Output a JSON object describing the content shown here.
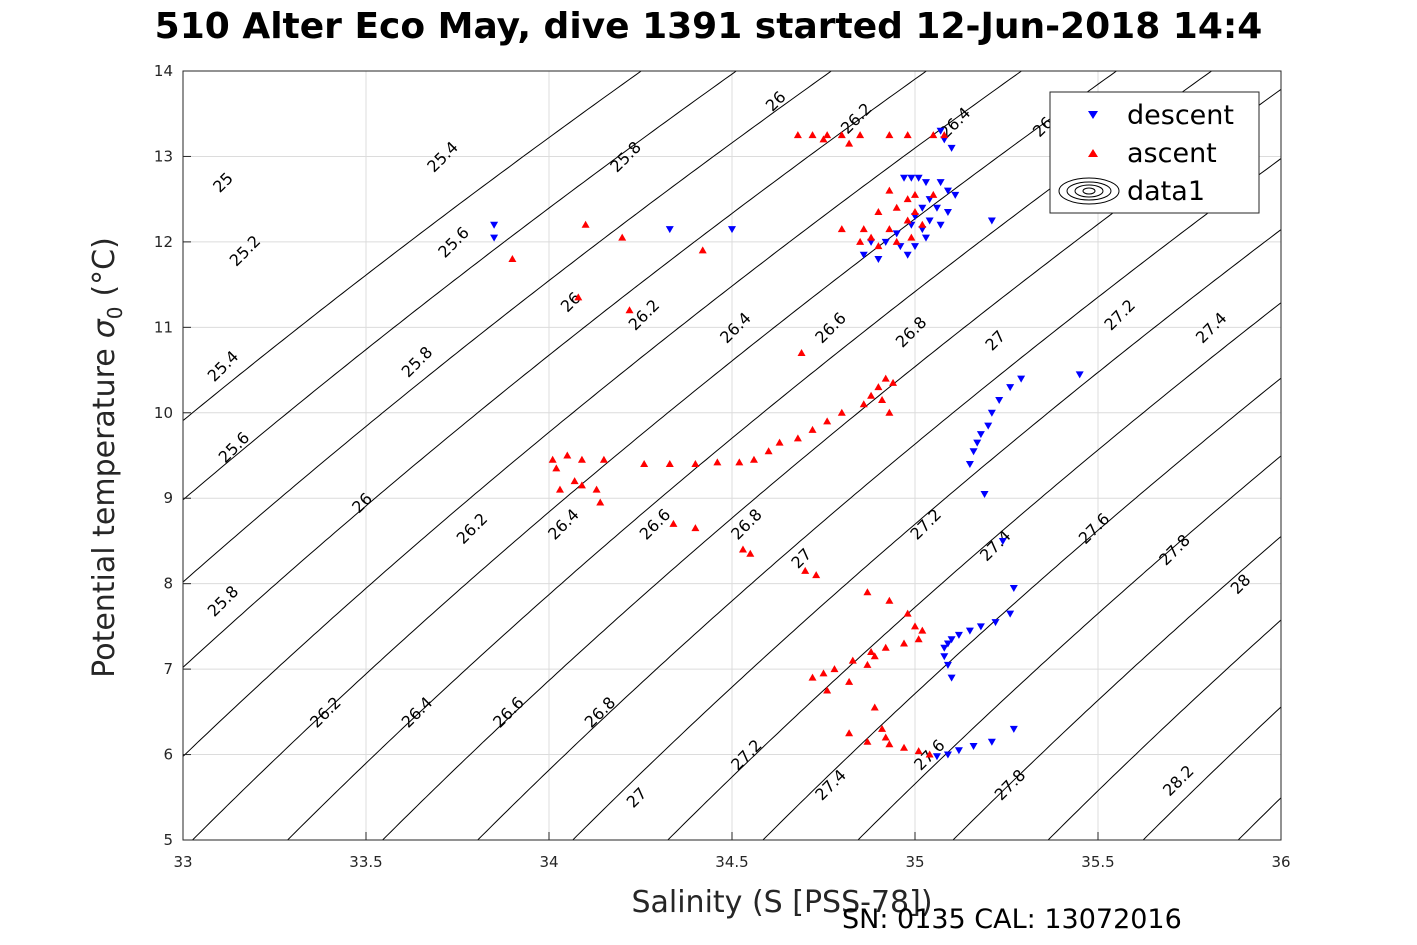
{
  "chart_data": {
    "type": "scatter",
    "title": "510 Alter Eco May, dive 1391 started 12-Jun-2018 14:4",
    "xlabel": "Salinity (S [PSS-78])",
    "ylabel": "Potential temperature",
    "ylabel_symbol": "σ",
    "ylabel_subscript": "0",
    "ylabel_unit": "(°C)",
    "xlim": [
      33,
      36
    ],
    "ylim": [
      5,
      14
    ],
    "xticks": [
      33,
      33.5,
      34,
      34.5,
      35,
      35.5,
      36
    ],
    "xtick_labels": [
      "33",
      "33.5",
      "34",
      "34.5",
      "35",
      "35.5",
      "36"
    ],
    "yticks": [
      5,
      6,
      7,
      8,
      9,
      10,
      11,
      12,
      13,
      14
    ],
    "ytick_labels": [
      "5",
      "6",
      "7",
      "8",
      "9",
      "10",
      "11",
      "12",
      "13",
      "14"
    ],
    "grid": true,
    "legend_position": "top-right",
    "legend": [
      "descent",
      "ascent",
      "data1"
    ],
    "footer": "SN: 0135  CAL: 13072016",
    "colors": {
      "descent": "#0000ff",
      "ascent": "#ff0000",
      "contour": "#000000",
      "grid": "#dcdcdc"
    },
    "contours": {
      "levels": [
        25,
        25.2,
        25.4,
        25.6,
        25.8,
        26,
        26.2,
        26.4,
        26.6,
        26.8,
        27,
        27.2,
        27.4,
        27.6,
        27.8,
        28,
        28.2
      ],
      "labels": [
        {
          "text": "25",
          "S": 33.12,
          "T": 12.65
        },
        {
          "text": "25.2",
          "S": 33.18,
          "T": 11.85
        },
        {
          "text": "25.4",
          "S": 33.12,
          "T": 10.5
        },
        {
          "text": "25.6",
          "S": 33.15,
          "T": 9.55
        },
        {
          "text": "25.8",
          "S": 33.12,
          "T": 7.75
        },
        {
          "text": "25.4",
          "S": 33.72,
          "T": 12.95
        },
        {
          "text": "25.6",
          "S": 33.75,
          "T": 11.95
        },
        {
          "text": "25.8",
          "S": 33.65,
          "T": 10.55
        },
        {
          "text": "26",
          "S": 33.5,
          "T": 8.9
        },
        {
          "text": "26.2",
          "S": 33.4,
          "T": 6.45
        },
        {
          "text": "26.4",
          "S": 33.65,
          "T": 6.45
        },
        {
          "text": "26.6",
          "S": 33.9,
          "T": 6.45
        },
        {
          "text": "26.8",
          "S": 34.15,
          "T": 6.45
        },
        {
          "text": "26.2",
          "S": 33.8,
          "T": 8.6
        },
        {
          "text": "26.4",
          "S": 34.05,
          "T": 8.65
        },
        {
          "text": "26.6",
          "S": 34.3,
          "T": 8.65
        },
        {
          "text": "26.8",
          "S": 34.55,
          "T": 8.65
        },
        {
          "text": "27",
          "S": 34.25,
          "T": 5.45
        },
        {
          "text": "27.2",
          "S": 34.55,
          "T": 5.95
        },
        {
          "text": "27.4",
          "S": 34.78,
          "T": 5.6
        },
        {
          "text": "27",
          "S": 34.7,
          "T": 8.25
        },
        {
          "text": "25.8",
          "S": 34.22,
          "T": 12.95
        },
        {
          "text": "26",
          "S": 34.07,
          "T": 11.25
        },
        {
          "text": "26.2",
          "S": 34.27,
          "T": 11.1
        },
        {
          "text": "26.4",
          "S": 34.52,
          "T": 10.95
        },
        {
          "text": "26.6",
          "S": 34.78,
          "T": 10.95
        },
        {
          "text": "26.8",
          "S": 35.0,
          "T": 10.9
        },
        {
          "text": "27",
          "S": 35.23,
          "T": 10.8
        },
        {
          "text": "27.2",
          "S": 35.57,
          "T": 11.1
        },
        {
          "text": "27.4",
          "S": 35.82,
          "T": 10.95
        },
        {
          "text": "26",
          "S": 34.63,
          "T": 13.6
        },
        {
          "text": "26.2",
          "S": 34.85,
          "T": 13.4
        },
        {
          "text": "26.4",
          "S": 35.12,
          "T": 13.35
        },
        {
          "text": "26",
          "S": 35.36,
          "T": 13.3
        },
        {
          "text": "27.2",
          "S": 35.04,
          "T": 8.65
        },
        {
          "text": "27.4",
          "S": 35.23,
          "T": 8.4
        },
        {
          "text": "27.6",
          "S": 35.5,
          "T": 8.6
        },
        {
          "text": "27.8",
          "S": 35.72,
          "T": 8.35
        },
        {
          "text": "28",
          "S": 35.9,
          "T": 7.95
        },
        {
          "text": "27.6",
          "S": 35.05,
          "T": 5.95
        },
        {
          "text": "27.8",
          "S": 35.27,
          "T": 5.6
        },
        {
          "text": "28.2",
          "S": 35.73,
          "T": 5.65
        }
      ]
    },
    "series": [
      {
        "name": "descent",
        "marker": "triangle-down",
        "points": [
          [
            33.85,
            12.2
          ],
          [
            33.85,
            12.05
          ],
          [
            34.33,
            12.15
          ],
          [
            34.5,
            12.15
          ],
          [
            34.97,
            12.75
          ],
          [
            34.99,
            12.75
          ],
          [
            35.01,
            12.75
          ],
          [
            35.03,
            12.7
          ],
          [
            35.07,
            12.7
          ],
          [
            35.09,
            12.6
          ],
          [
            35.11,
            12.55
          ],
          [
            35.04,
            12.5
          ],
          [
            35.02,
            12.4
          ],
          [
            35.06,
            12.4
          ],
          [
            35.09,
            12.35
          ],
          [
            35.0,
            12.3
          ],
          [
            35.04,
            12.25
          ],
          [
            35.07,
            12.2
          ],
          [
            35.02,
            12.15
          ],
          [
            34.99,
            12.2
          ],
          [
            34.95,
            12.1
          ],
          [
            34.92,
            12.0
          ],
          [
            34.96,
            11.95
          ],
          [
            35.0,
            11.95
          ],
          [
            34.98,
            11.85
          ],
          [
            34.9,
            11.8
          ],
          [
            34.86,
            11.85
          ],
          [
            34.88,
            12.0
          ],
          [
            35.03,
            12.05
          ],
          [
            35.21,
            12.25
          ],
          [
            35.08,
            13.2
          ],
          [
            35.1,
            13.1
          ],
          [
            35.07,
            13.3
          ],
          [
            35.45,
            10.45
          ],
          [
            35.29,
            10.4
          ],
          [
            35.26,
            10.3
          ],
          [
            35.23,
            10.15
          ],
          [
            35.21,
            10.0
          ],
          [
            35.2,
            9.85
          ],
          [
            35.18,
            9.75
          ],
          [
            35.17,
            9.65
          ],
          [
            35.16,
            9.55
          ],
          [
            35.15,
            9.4
          ],
          [
            35.19,
            9.05
          ],
          [
            35.24,
            8.5
          ],
          [
            35.27,
            7.95
          ],
          [
            35.26,
            7.65
          ],
          [
            35.22,
            7.55
          ],
          [
            35.18,
            7.5
          ],
          [
            35.15,
            7.45
          ],
          [
            35.12,
            7.4
          ],
          [
            35.1,
            7.35
          ],
          [
            35.09,
            7.3
          ],
          [
            35.08,
            7.25
          ],
          [
            35.08,
            7.15
          ],
          [
            35.09,
            7.05
          ],
          [
            35.1,
            6.9
          ],
          [
            35.27,
            6.3
          ],
          [
            35.21,
            6.15
          ],
          [
            35.16,
            6.1
          ],
          [
            35.12,
            6.05
          ],
          [
            35.09,
            6.0
          ],
          [
            35.06,
            5.98
          ]
        ]
      },
      {
        "name": "ascent",
        "marker": "triangle-up",
        "points": [
          [
            33.9,
            11.8
          ],
          [
            34.1,
            12.2
          ],
          [
            34.2,
            12.05
          ],
          [
            34.42,
            11.9
          ],
          [
            34.22,
            11.2
          ],
          [
            34.08,
            11.35
          ],
          [
            34.68,
            13.25
          ],
          [
            34.72,
            13.25
          ],
          [
            34.76,
            13.25
          ],
          [
            34.8,
            13.25
          ],
          [
            34.85,
            13.25
          ],
          [
            34.93,
            13.25
          ],
          [
            34.98,
            13.25
          ],
          [
            35.05,
            13.25
          ],
          [
            35.08,
            13.25
          ],
          [
            34.75,
            13.2
          ],
          [
            34.82,
            13.15
          ],
          [
            34.93,
            12.6
          ],
          [
            34.98,
            12.5
          ],
          [
            35.0,
            12.55
          ],
          [
            35.05,
            12.55
          ],
          [
            34.95,
            12.4
          ],
          [
            35.0,
            12.35
          ],
          [
            34.9,
            12.35
          ],
          [
            34.98,
            12.25
          ],
          [
            35.02,
            12.2
          ],
          [
            34.93,
            12.15
          ],
          [
            34.86,
            12.15
          ],
          [
            34.8,
            12.15
          ],
          [
            34.88,
            12.05
          ],
          [
            34.95,
            12.0
          ],
          [
            34.85,
            12.0
          ],
          [
            34.9,
            11.95
          ],
          [
            34.99,
            12.05
          ],
          [
            34.01,
            9.45
          ],
          [
            34.02,
            9.35
          ],
          [
            34.05,
            9.5
          ],
          [
            34.09,
            9.45
          ],
          [
            34.15,
            9.45
          ],
          [
            34.03,
            9.1
          ],
          [
            34.07,
            9.2
          ],
          [
            34.09,
            9.15
          ],
          [
            34.13,
            9.1
          ],
          [
            34.14,
            8.95
          ],
          [
            34.26,
            9.4
          ],
          [
            34.33,
            9.4
          ],
          [
            34.4,
            9.4
          ],
          [
            34.46,
            9.42
          ],
          [
            34.52,
            9.42
          ],
          [
            34.56,
            9.45
          ],
          [
            34.6,
            9.55
          ],
          [
            34.63,
            9.65
          ],
          [
            34.68,
            9.7
          ],
          [
            34.72,
            9.8
          ],
          [
            34.76,
            9.9
          ],
          [
            34.8,
            10.0
          ],
          [
            34.86,
            10.1
          ],
          [
            34.88,
            10.2
          ],
          [
            34.9,
            10.3
          ],
          [
            34.92,
            10.4
          ],
          [
            34.94,
            10.35
          ],
          [
            34.91,
            10.15
          ],
          [
            34.93,
            10.0
          ],
          [
            34.69,
            10.7
          ],
          [
            34.34,
            8.7
          ],
          [
            34.4,
            8.65
          ],
          [
            34.53,
            8.4
          ],
          [
            34.55,
            8.35
          ],
          [
            34.7,
            8.15
          ],
          [
            34.73,
            8.1
          ],
          [
            34.87,
            7.9
          ],
          [
            34.93,
            7.8
          ],
          [
            34.98,
            7.65
          ],
          [
            35.0,
            7.5
          ],
          [
            35.02,
            7.45
          ],
          [
            35.01,
            7.35
          ],
          [
            34.97,
            7.3
          ],
          [
            34.92,
            7.25
          ],
          [
            34.88,
            7.2
          ],
          [
            34.83,
            7.1
          ],
          [
            34.78,
            7.0
          ],
          [
            34.75,
            6.95
          ],
          [
            34.72,
            6.9
          ],
          [
            34.76,
            6.75
          ],
          [
            34.82,
            6.85
          ],
          [
            34.87,
            7.05
          ],
          [
            34.89,
            7.15
          ],
          [
            34.89,
            6.55
          ],
          [
            34.91,
            6.3
          ],
          [
            34.92,
            6.2
          ],
          [
            34.87,
            6.15
          ],
          [
            34.93,
            6.12
          ],
          [
            34.97,
            6.08
          ],
          [
            35.01,
            6.04
          ],
          [
            35.04,
            6.0
          ],
          [
            34.82,
            6.25
          ]
        ]
      }
    ]
  }
}
